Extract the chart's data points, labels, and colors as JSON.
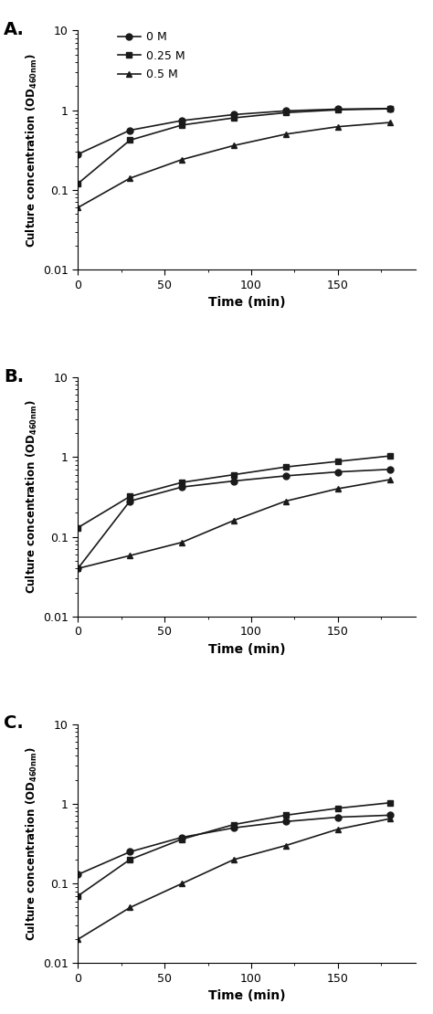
{
  "panel_labels": [
    "A.",
    "B.",
    "C."
  ],
  "time": [
    0,
    30,
    60,
    90,
    120,
    150,
    180
  ],
  "panel_A": {
    "line_0M": [
      0.28,
      0.56,
      0.74,
      0.88,
      0.98,
      1.03,
      1.05
    ],
    "line_025M": [
      0.12,
      0.42,
      0.65,
      0.8,
      0.93,
      1.01,
      1.04
    ],
    "line_05M": [
      0.06,
      0.14,
      0.24,
      0.36,
      0.5,
      0.62,
      0.7
    ]
  },
  "panel_B": {
    "line_0M": [
      0.04,
      0.28,
      0.42,
      0.5,
      0.58,
      0.65,
      0.7
    ],
    "line_025M": [
      0.13,
      0.32,
      0.48,
      0.6,
      0.75,
      0.88,
      1.03
    ],
    "line_05M": [
      0.04,
      0.058,
      0.085,
      0.16,
      0.28,
      0.4,
      0.52
    ]
  },
  "panel_C": {
    "line_0M": [
      0.13,
      0.25,
      0.38,
      0.5,
      0.6,
      0.68,
      0.72
    ],
    "line_025M": [
      0.07,
      0.2,
      0.36,
      0.55,
      0.72,
      0.88,
      1.03
    ],
    "line_05M": [
      0.02,
      0.05,
      0.1,
      0.2,
      0.3,
      0.48,
      0.65
    ]
  },
  "ylim": [
    0.01,
    10
  ],
  "xlim": [
    0,
    195
  ],
  "xticks": [
    0,
    50,
    100,
    150
  ],
  "xticklabels": [
    "0",
    "50",
    "100",
    "150"
  ],
  "xlim_with_end": 195,
  "yticks": [
    0.01,
    0.1,
    1,
    10
  ],
  "yticklabels": [
    "0.01",
    "0.1",
    "1",
    "10"
  ],
  "legend_labels": [
    "0 M",
    "0.25 M",
    "0.5 M"
  ],
  "xlabel": "Time (min)",
  "ylabel_main": "Culture concentration (OD",
  "ylabel_sub": "460nm",
  "ylabel_end": ")",
  "bg_color": "#ffffff",
  "line_color": "#1a1a1a",
  "marker_size": 5,
  "line_width": 1.2
}
